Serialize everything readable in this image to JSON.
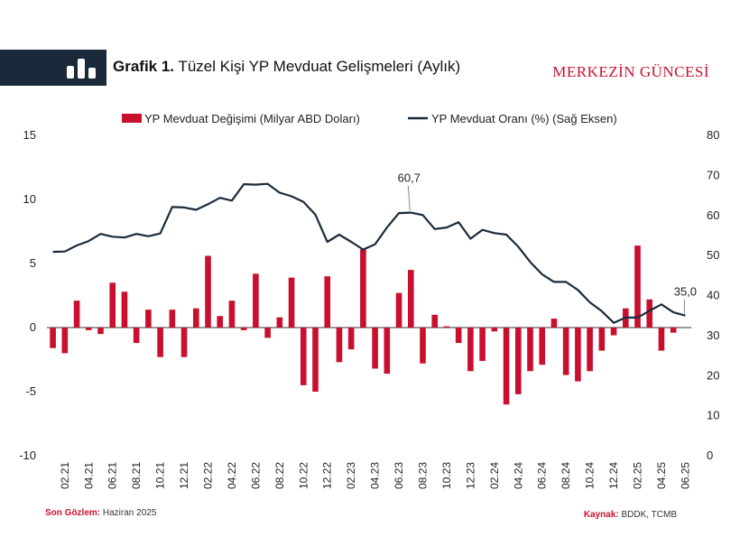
{
  "header": {
    "title_bold": "Grafik 1.",
    "title_rest": " Tüzel Kişi YP Mevduat Gelişmeleri (Aylık)",
    "brand": "MERKEZİN GÜNCESİ",
    "icon": "bar-chart-icon"
  },
  "footer": {
    "source_label": "Son Gözlem:",
    "source_value": " Haziran 2025",
    "kaynak_label": "Kaynak:",
    "kaynak_value": " BDDK, TCMB"
  },
  "colors": {
    "bar": "#c8102e",
    "line": "#1b2a3a"
  },
  "chart_data": {
    "type": "bar",
    "title": "Tüzel Kişi YP Mevduat Gelişmeleri (Aylık)",
    "legend": [
      "YP Mevduat Değişimi (Milyar ABD Doları)",
      "YP Mevduat Oranı (%) (Sağ Eksen)"
    ],
    "legend_position": "top-center",
    "ylim_left": [
      -10,
      15
    ],
    "yticks_left": [
      15,
      10,
      5,
      0,
      -5,
      -10
    ],
    "ylim_right": [
      0,
      80
    ],
    "yticks_right": [
      80,
      70,
      60,
      50,
      40,
      30,
      20,
      10,
      0
    ],
    "x_tick_labels": [
      "02.21",
      "04.21",
      "06.21",
      "08.21",
      "10.21",
      "12.21",
      "02.22",
      "04.22",
      "06.22",
      "08.22",
      "10.22",
      "12.22",
      "02.23",
      "04.23",
      "06.23",
      "08.23",
      "10.23",
      "12.23",
      "02.24",
      "04.24",
      "06.24",
      "08.24",
      "10.24",
      "12.24",
      "02.25",
      "04.25",
      "06.25"
    ],
    "months": [
      "01.21",
      "02.21",
      "03.21",
      "04.21",
      "05.21",
      "06.21",
      "07.21",
      "08.21",
      "09.21",
      "10.21",
      "11.21",
      "12.21",
      "01.22",
      "02.22",
      "03.22",
      "04.22",
      "05.22",
      "06.22",
      "07.22",
      "08.22",
      "09.22",
      "10.22",
      "11.22",
      "12.22",
      "01.23",
      "02.23",
      "03.23",
      "04.23",
      "05.23",
      "06.23",
      "07.23",
      "08.23",
      "09.23",
      "10.23",
      "11.23",
      "12.23",
      "01.24",
      "02.24",
      "03.24",
      "04.24",
      "05.24",
      "06.24",
      "07.24",
      "08.24",
      "09.24",
      "10.24",
      "11.24",
      "12.24",
      "01.25",
      "02.25",
      "03.25",
      "04.25",
      "05.25",
      "06.25"
    ],
    "series": [
      {
        "name": "YP Mevduat Değişimi (Milyar ABD Doları)",
        "axis": "left",
        "kind": "bar",
        "values": [
          -1.6,
          -2.0,
          2.1,
          -0.2,
          -0.5,
          3.5,
          2.8,
          -1.2,
          1.4,
          -2.3,
          1.4,
          -2.3,
          1.5,
          5.6,
          0.9,
          2.1,
          -0.2,
          4.2,
          -0.8,
          0.8,
          3.9,
          -4.5,
          -5.0,
          4.0,
          -2.7,
          -1.7,
          6.1,
          -3.2,
          -3.6,
          2.7,
          4.5,
          -2.8,
          1.0,
          0.1,
          -1.2,
          -3.4,
          -2.6,
          -0.3,
          -6.0,
          -5.2,
          -3.4,
          -2.9,
          0.7,
          -3.7,
          -4.2,
          -3.4,
          -1.8,
          -0.6,
          1.5,
          6.4,
          2.2,
          -1.8,
          -0.4,
          null
        ]
      },
      {
        "name": "YP Mevduat Oranı (%) (Sağ Eksen)",
        "axis": "right",
        "kind": "line",
        "values": [
          50.9,
          51.0,
          52.5,
          53.6,
          55.4,
          54.7,
          54.5,
          55.4,
          54.8,
          55.5,
          62.1,
          62.0,
          61.4,
          62.8,
          64.4,
          63.7,
          67.8,
          67.7,
          67.9,
          65.7,
          64.8,
          63.4,
          60.2,
          53.4,
          55.2,
          53.4,
          51.5,
          52.8,
          57.0,
          60.6,
          60.7,
          60.1,
          56.6,
          57.0,
          58.3,
          54.2,
          56.4,
          55.6,
          55.2,
          52.2,
          48.4,
          45.3,
          43.4,
          43.4,
          41.4,
          38.3,
          36.1,
          33.2,
          34.5,
          34.5,
          36.2,
          37.8,
          35.8,
          35.0
        ]
      }
    ],
    "annotations": [
      {
        "label": "60,7",
        "month": "07.23"
      },
      {
        "label": "35,0",
        "month": "06.25"
      }
    ]
  }
}
